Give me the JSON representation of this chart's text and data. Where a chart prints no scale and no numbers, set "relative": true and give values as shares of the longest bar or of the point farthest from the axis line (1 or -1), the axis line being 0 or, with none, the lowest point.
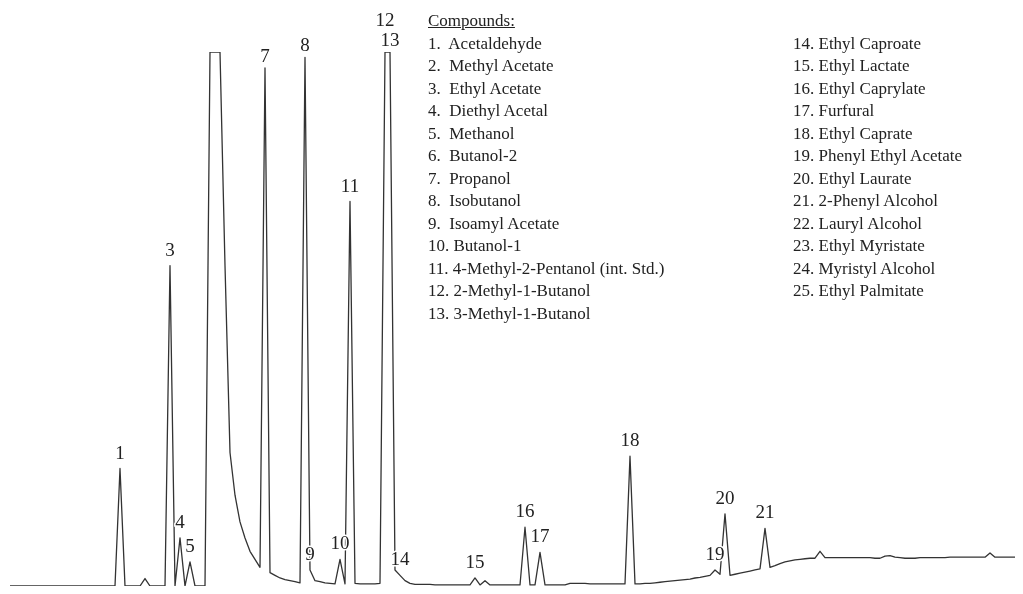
{
  "chart_data": {
    "type": "line",
    "relative": true,
    "color": "#333333",
    "marker": "none",
    "categories": [
      null,
      null,
      null,
      null,
      null,
      null,
      null,
      null,
      null,
      null,
      null,
      null,
      null,
      null,
      null,
      null,
      null,
      null,
      null,
      null,
      null,
      null,
      null,
      null,
      null,
      null,
      null,
      null,
      null,
      null,
      null,
      null,
      null,
      null,
      null,
      null,
      null,
      null,
      null,
      null,
      null,
      null,
      null,
      null,
      null,
      null,
      null,
      null,
      null,
      null,
      null,
      null,
      null,
      null,
      null,
      null,
      null,
      null,
      null,
      null,
      null,
      null,
      null,
      null,
      null,
      null,
      null,
      null,
      null,
      null,
      null,
      null,
      null,
      null,
      null,
      null,
      null,
      null,
      null,
      null,
      null,
      null,
      null,
      null,
      null,
      null,
      null,
      null,
      null,
      null,
      null,
      null,
      null,
      null,
      null,
      null,
      null,
      null,
      null,
      null,
      null,
      null,
      null,
      null,
      null,
      null,
      null,
      null,
      null,
      null,
      null,
      null,
      null,
      null,
      null,
      null,
      null,
      null,
      null,
      null,
      null,
      null,
      null,
      null,
      null,
      null,
      null,
      null,
      null,
      null,
      null,
      null,
      null,
      null,
      null,
      null,
      null,
      null,
      null,
      null,
      null,
      null,
      null,
      null,
      null,
      null,
      null,
      null,
      null,
      null,
      null,
      null,
      null,
      null,
      null,
      null,
      null,
      null,
      null,
      null,
      null,
      null,
      null,
      null,
      null,
      null,
      null,
      null,
      null,
      null,
      null,
      null,
      null,
      null,
      null,
      null,
      null,
      null,
      null,
      null,
      null,
      null,
      null,
      null,
      null,
      null,
      null,
      null,
      null,
      null,
      null,
      null,
      null,
      null,
      null,
      null,
      null,
      null,
      null,
      null,
      null,
      null
    ],
    "values": [
      0,
      0,
      0,
      0,
      0,
      0,
      0,
      0,
      0,
      0,
      0,
      0,
      0,
      0,
      0,
      0,
      0,
      0,
      0,
      0,
      0,
      0,
      0.22,
      0,
      0,
      0,
      0,
      0.014,
      0,
      0,
      0,
      0,
      0.6,
      0,
      0.09,
      0,
      0.045,
      0,
      0,
      0,
      1,
      1,
      1,
      0.6,
      0.25,
      0.17,
      0.12,
      0.09,
      0.065,
      0.05,
      0.035,
      0.97,
      0.025,
      0.02,
      0.015,
      0.012,
      0.01,
      0.008,
      0.006,
      0.99,
      0.03,
      0.01,
      0.008,
      0.006,
      0.005,
      0.004,
      0.05,
      0.004,
      0.72,
      0.005,
      0.004,
      0.004,
      0.004,
      0.004,
      0.005,
      1,
      1,
      0.03,
      0.02,
      0.01,
      0.005,
      0.003,
      0.003,
      0.003,
      0.003,
      0.002,
      0.002,
      0.002,
      0.002,
      0.002,
      0.002,
      0.002,
      0.002,
      0.015,
      0.002,
      0.01,
      0.002,
      0.002,
      0.002,
      0.002,
      0.002,
      0.002,
      0.002,
      0.11,
      0.002,
      0.002,
      0.063,
      0.002,
      0.002,
      0.002,
      0.002,
      0.002,
      0.005,
      0.005,
      0.005,
      0.005,
      0.004,
      0.004,
      0.004,
      0.004,
      0.004,
      0.004,
      0.004,
      0.004,
      0.243,
      0.004,
      0.004,
      0.005,
      0.005,
      0.006,
      0.007,
      0.008,
      0.009,
      0.01,
      0.011,
      0.012,
      0.013,
      0.015,
      0.016,
      0.018,
      0.02,
      0.03,
      0.022,
      0.135,
      0.02,
      0.022,
      0.024,
      0.026,
      0.028,
      0.03,
      0.032,
      0.108,
      0.035,
      0.038,
      0.042,
      0.045,
      0.047,
      0.049,
      0.05,
      0.051,
      0.052,
      0.052,
      0.065,
      0.053,
      0.053,
      0.053,
      0.053,
      0.053,
      0.053,
      0.053,
      0.053,
      0.053,
      0.053,
      0.052,
      0.052,
      0.056,
      0.057,
      0.054,
      0.053,
      0.052,
      0.052,
      0.052,
      0.053,
      0.053,
      0.053,
      0.053,
      0.053,
      0.053,
      0.054,
      0.054,
      0.054,
      0.054,
      0.054,
      0.054,
      0.054,
      0.054,
      0.062,
      0.054,
      0.054,
      0.054,
      0.054,
      0.054
    ],
    "annotations": [
      {
        "text": "1",
        "y": 0.22
      },
      {
        "text": "3",
        "y": 0.6
      },
      {
        "text": "4",
        "y": 0.09
      },
      {
        "text": "5",
        "y": 0.045
      },
      {
        "text": "7",
        "y": 0.97
      },
      {
        "text": "8",
        "y": 0.99
      },
      {
        "text": "9",
        "y": 0.03
      },
      {
        "text": "10",
        "y": 0.05
      },
      {
        "text": "11",
        "y": 0.72
      },
      {
        "text": "12",
        "y": 1
      },
      {
        "text": "13",
        "y": 1
      },
      {
        "text": "14",
        "y": 0.02
      },
      {
        "text": "15",
        "y": 0.015
      },
      {
        "text": "16",
        "y": 0.11
      },
      {
        "text": "17",
        "y": 0.063
      },
      {
        "text": "18",
        "y": 0.243
      },
      {
        "text": "19",
        "y": 0.03
      },
      {
        "text": "20",
        "y": 0.135
      },
      {
        "text": "21",
        "y": 0.108
      },
      "Compounds:",
      "1.  Acetaldehyde",
      "2.  Methyl Acetate",
      "3.  Ethyl Acetate",
      "4.  Diethyl Acetal",
      "5.  Methanol",
      "6.  Butanol-2",
      "7.  Propanol",
      "8.  Isobutanol",
      "9.  Isoamyl Acetate",
      "10. Butanol-1",
      "11. 4-Methyl-2-Pentanol (int. Std.)",
      "12. 2-Methyl-1-Butanol",
      "13. 3-Methyl-1-Butanol",
      "14. Ethyl Caproate",
      "15. Ethyl Lactate",
      "16. Ethyl Caprylate",
      "17. Furfural",
      "18. Ethyl Caprate",
      "19. Phenyl Ethyl Acetate",
      "20. Ethyl Laurate",
      "21. 2-Phenyl Alcohol",
      "22. Lauryl Alcohol",
      "23. Ethyl Myristate",
      "24. Myristyl Alcohol",
      "25. Ethyl Palmitate"
    ]
  }
}
